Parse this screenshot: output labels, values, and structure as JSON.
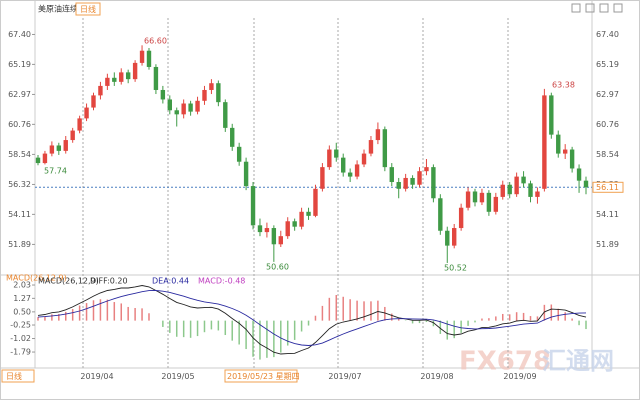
{
  "header": {
    "title": "美原油连续",
    "period": "日线"
  },
  "chart_data": {
    "type": "candlestick",
    "up_color": "#e2463f",
    "down_color": "#3f9a46",
    "ylim": [
      50.0,
      68.1
    ],
    "yticks": [
      {
        "value": 67.4,
        "label": "67.40"
      },
      65.19,
      62.97,
      60.76,
      58.54,
      56.32,
      54.11,
      51.89
    ],
    "last_price": 56.11,
    "annotations": [
      "66.60",
      "57.74",
      "50.60",
      "50.52",
      "63.38"
    ],
    "x_labels": [
      "2019/04",
      "2019/05",
      "2019/05/23 星期四",
      "2019/07",
      "2019/08",
      "2019/09"
    ],
    "candles": [
      [
        58.3,
        58.5,
        57.74,
        57.9
      ],
      [
        57.9,
        58.8,
        57.8,
        58.6
      ],
      [
        58.6,
        59.5,
        58.4,
        59.2
      ],
      [
        59.2,
        59.4,
        58.5,
        58.8
      ],
      [
        58.8,
        59.9,
        58.6,
        59.6
      ],
      [
        59.6,
        60.5,
        59.4,
        60.3
      ],
      [
        60.3,
        61.4,
        60.1,
        61.2
      ],
      [
        61.2,
        62.3,
        61.0,
        62.0
      ],
      [
        62.0,
        63.1,
        61.8,
        62.9
      ],
      [
        62.9,
        63.9,
        62.6,
        63.6
      ],
      [
        63.6,
        64.5,
        63.3,
        64.2
      ],
      [
        64.2,
        64.6,
        63.6,
        63.9
      ],
      [
        63.9,
        64.9,
        63.7,
        64.6
      ],
      [
        64.6,
        64.8,
        63.8,
        64.1
      ],
      [
        64.1,
        65.5,
        63.9,
        65.3
      ],
      [
        65.3,
        66.6,
        65.1,
        66.2
      ],
      [
        66.2,
        66.4,
        64.8,
        65.0
      ],
      [
        65.0,
        65.2,
        63.0,
        63.3
      ],
      [
        63.3,
        63.6,
        62.3,
        62.6
      ],
      [
        62.6,
        62.9,
        61.5,
        61.8
      ],
      [
        61.8,
        62.0,
        60.6,
        61.5
      ],
      [
        61.5,
        62.6,
        61.2,
        62.3
      ],
      [
        62.3,
        62.5,
        61.4,
        61.7
      ],
      [
        61.7,
        62.8,
        61.5,
        62.5
      ],
      [
        62.5,
        63.6,
        62.2,
        63.3
      ],
      [
        63.3,
        64.1,
        63.0,
        63.8
      ],
      [
        63.8,
        64.0,
        62.1,
        62.4
      ],
      [
        62.4,
        62.6,
        60.2,
        60.5
      ],
      [
        60.5,
        60.8,
        58.8,
        59.1
      ],
      [
        59.1,
        59.4,
        57.7,
        58.0
      ],
      [
        58.0,
        58.3,
        55.9,
        56.2
      ],
      [
        56.2,
        56.5,
        53.0,
        53.3
      ],
      [
        53.3,
        53.8,
        52.5,
        52.8
      ],
      [
        52.8,
        53.5,
        52.4,
        53.1
      ],
      [
        53.1,
        53.3,
        50.6,
        51.9
      ],
      [
        51.9,
        52.9,
        51.7,
        52.5
      ],
      [
        52.5,
        53.9,
        52.3,
        53.6
      ],
      [
        53.6,
        53.8,
        52.9,
        53.2
      ],
      [
        53.2,
        54.6,
        53.0,
        54.3
      ],
      [
        54.3,
        54.6,
        53.7,
        54.0
      ],
      [
        54.0,
        56.3,
        53.9,
        56.0
      ],
      [
        56.0,
        57.9,
        55.8,
        57.6
      ],
      [
        57.6,
        59.2,
        57.4,
        58.9
      ],
      [
        58.9,
        59.4,
        58.0,
        58.3
      ],
      [
        58.3,
        58.6,
        56.9,
        57.2
      ],
      [
        57.2,
        57.5,
        56.5,
        56.9
      ],
      [
        56.9,
        58.1,
        56.7,
        57.8
      ],
      [
        57.8,
        58.9,
        57.6,
        58.6
      ],
      [
        58.6,
        59.9,
        58.4,
        59.6
      ],
      [
        59.6,
        60.9,
        59.3,
        60.4
      ],
      [
        60.4,
        60.6,
        57.3,
        57.6
      ],
      [
        57.6,
        57.9,
        56.2,
        56.5
      ],
      [
        56.5,
        56.8,
        55.3,
        56.0
      ],
      [
        56.0,
        57.1,
        55.8,
        56.8
      ],
      [
        56.8,
        57.0,
        56.0,
        56.3
      ],
      [
        56.3,
        57.6,
        56.1,
        57.3
      ],
      [
        57.3,
        58.2,
        57.0,
        57.6
      ],
      [
        57.6,
        57.8,
        55.0,
        55.3
      ],
      [
        55.3,
        55.6,
        52.6,
        52.9
      ],
      [
        52.9,
        53.2,
        50.52,
        51.8
      ],
      [
        51.8,
        53.4,
        51.6,
        53.1
      ],
      [
        53.1,
        54.9,
        52.9,
        54.6
      ],
      [
        54.6,
        56.1,
        54.4,
        55.8
      ],
      [
        55.8,
        56.0,
        54.7,
        55.0
      ],
      [
        55.0,
        56.0,
        54.8,
        55.7
      ],
      [
        55.7,
        55.9,
        54.0,
        54.3
      ],
      [
        54.3,
        55.7,
        54.1,
        55.4
      ],
      [
        55.4,
        56.6,
        55.2,
        56.3
      ],
      [
        56.3,
        56.5,
        55.3,
        55.6
      ],
      [
        55.6,
        57.2,
        55.4,
        56.9
      ],
      [
        56.9,
        57.3,
        56.1,
        56.4
      ],
      [
        56.4,
        56.6,
        55.0,
        55.4
      ],
      [
        55.4,
        56.1,
        54.9,
        55.8
      ],
      [
        56.0,
        63.38,
        55.8,
        62.9
      ],
      [
        62.9,
        63.1,
        59.7,
        60.0
      ],
      [
        60.0,
        60.3,
        58.3,
        58.6
      ],
      [
        58.6,
        59.3,
        58.2,
        58.9
      ],
      [
        58.9,
        59.1,
        57.2,
        57.5
      ],
      [
        57.5,
        57.8,
        55.7,
        56.6
      ],
      [
        56.6,
        56.9,
        55.6,
        56.11
      ]
    ],
    "macd_panel": {
      "title": "MACD(26,12,9)",
      "diff_text": "DIFF:0.20",
      "dea_text": "DEA:0.44",
      "macd_text": "MACD:-0.48",
      "ylim": [
        -2.7,
        2.43
      ],
      "yticks": [
        2.03,
        1.27,
        {
          "value": 0.5,
          "label": "0.50"
        },
        -0.25,
        -1.02,
        -1.79
      ],
      "diff_color": "#222222",
      "dea_color": "#2a2aa0",
      "diff": [
        0.3,
        0.35,
        0.45,
        0.5,
        0.62,
        0.78,
        0.98,
        1.18,
        1.4,
        1.58,
        1.72,
        1.78,
        1.86,
        1.86,
        1.92,
        2.0,
        1.92,
        1.72,
        1.5,
        1.26,
        1.04,
        0.92,
        0.78,
        0.72,
        0.74,
        0.76,
        0.66,
        0.42,
        0.12,
        -0.16,
        -0.5,
        -0.98,
        -1.34,
        -1.56,
        -1.8,
        -1.9,
        -1.88,
        -1.86,
        -1.7,
        -1.56,
        -1.24,
        -0.86,
        -0.46,
        -0.2,
        -0.08,
        0.0,
        0.1,
        0.22,
        0.36,
        0.52,
        0.44,
        0.3,
        0.16,
        0.1,
        0.02,
        0.02,
        0.04,
        -0.12,
        -0.44,
        -0.74,
        -0.82,
        -0.76,
        -0.6,
        -0.52,
        -0.4,
        -0.38,
        -0.3,
        -0.18,
        -0.14,
        -0.02,
        0.02,
        -0.04,
        -0.02,
        0.5,
        0.66,
        0.64,
        0.6,
        0.46,
        0.3,
        0.2
      ],
      "dea": [
        0.2,
        0.23,
        0.27,
        0.31,
        0.37,
        0.45,
        0.55,
        0.68,
        0.82,
        0.97,
        1.12,
        1.25,
        1.37,
        1.47,
        1.56,
        1.65,
        1.71,
        1.72,
        1.68,
        1.61,
        1.5,
        1.39,
        1.27,
        1.16,
        1.07,
        1.01,
        0.94,
        0.83,
        0.69,
        0.52,
        0.31,
        0.05,
        -0.23,
        -0.5,
        -0.76,
        -0.99,
        -1.17,
        -1.31,
        -1.39,
        -1.42,
        -1.38,
        -1.28,
        -1.11,
        -0.93,
        -0.76,
        -0.61,
        -0.47,
        -0.33,
        -0.19,
        -0.05,
        0.05,
        0.1,
        0.11,
        0.11,
        0.1,
        0.09,
        0.08,
        0.04,
        -0.06,
        -0.2,
        -0.32,
        -0.41,
        -0.45,
        -0.47,
        -0.46,
        -0.45,
        -0.42,
        -0.37,
        -0.32,
        -0.26,
        -0.2,
        -0.17,
        -0.14,
        0.05,
        0.2,
        0.3,
        0.36,
        0.4,
        0.43,
        0.44
      ],
      "macd": [
        0.2,
        0.24,
        0.36,
        0.38,
        0.5,
        0.66,
        0.86,
        1.0,
        1.16,
        1.22,
        1.2,
        1.06,
        0.98,
        0.78,
        0.72,
        0.7,
        0.42,
        0.0,
        -0.36,
        -0.7,
        -0.92,
        -0.94,
        -0.98,
        -0.88,
        -0.66,
        -0.5,
        -0.56,
        -0.82,
        -1.14,
        -1.36,
        -1.62,
        -2.06,
        -2.22,
        -2.12,
        -2.08,
        -1.82,
        -1.42,
        -1.1,
        -0.62,
        -0.28,
        0.28,
        0.84,
        1.3,
        1.46,
        1.36,
        1.22,
        1.14,
        1.1,
        1.1,
        1.14,
        0.78,
        0.4,
        0.1,
        -0.02,
        -0.16,
        -0.14,
        -0.08,
        -0.32,
        -0.76,
        -1.08,
        -1.0,
        -0.7,
        -0.3,
        -0.1,
        0.12,
        0.14,
        0.24,
        0.38,
        0.36,
        0.48,
        0.44,
        0.26,
        0.24,
        0.9,
        0.92,
        0.68,
        0.48,
        0.12,
        -0.26,
        -0.48
      ]
    }
  },
  "footer": {
    "period": "日线"
  },
  "watermark": {
    "brand": "FX678",
    "name": "汇通网"
  }
}
